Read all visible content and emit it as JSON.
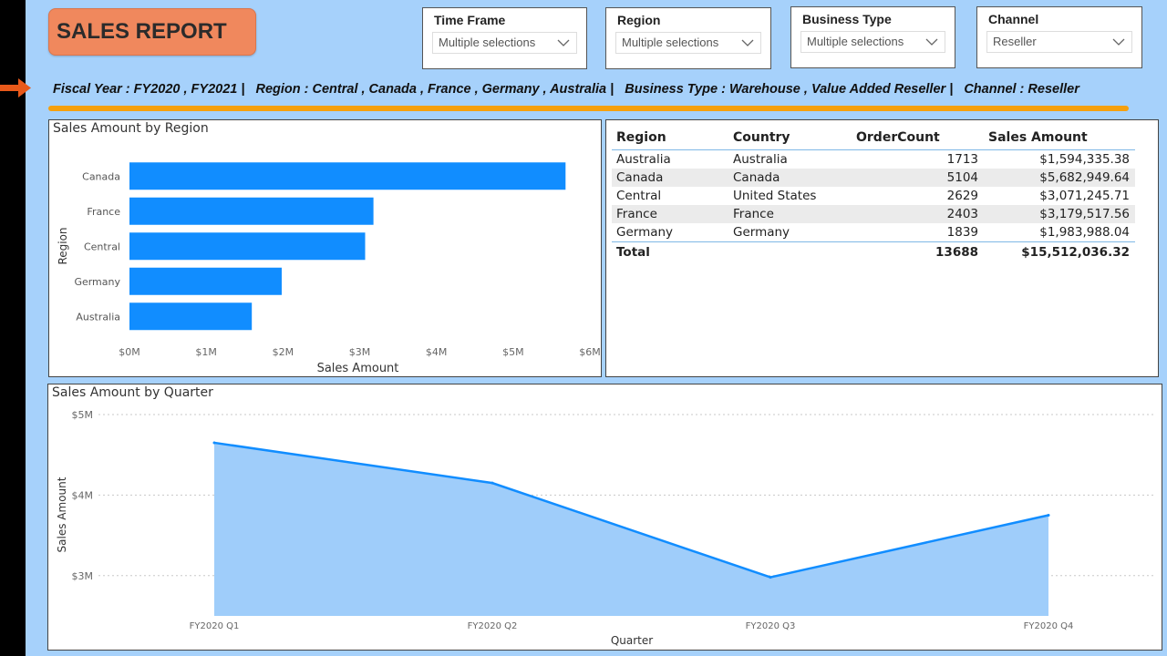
{
  "report": {
    "title": "SALES REPORT"
  },
  "slicers": [
    {
      "label": "Time Frame",
      "value": "Multiple selections"
    },
    {
      "label": "Region",
      "value": "Multiple selections"
    },
    {
      "label": "Business Type",
      "value": "Multiple selections"
    },
    {
      "label": "Channel",
      "value": "Reseller"
    }
  ],
  "filter_summary": "Fiscal Year : FY2020 , FY2021 |   Region : Central , Canada , France , Germany , Australia |   Business Type : Warehouse , Value Added Reseller |   Channel : Reseller",
  "colors": {
    "accent_orange": "#f5a00e",
    "bar_blue": "#118dff",
    "area_fill": "#9fcdfa",
    "background": "#a6d1fb",
    "title_bg": "#f0885d"
  },
  "table": {
    "columns": [
      "Region",
      "Country",
      "OrderCount",
      "Sales Amount"
    ],
    "rows": [
      [
        "Australia",
        "Australia",
        "1713",
        "$1,594,335.38"
      ],
      [
        "Canada",
        "Canada",
        "5104",
        "$5,682,949.64"
      ],
      [
        "Central",
        "United States",
        "2629",
        "$3,071,245.71"
      ],
      [
        "France",
        "France",
        "2403",
        "$3,179,517.56"
      ],
      [
        "Germany",
        "Germany",
        "1839",
        "$1,983,988.04"
      ]
    ],
    "total": [
      "Total",
      "",
      "13688",
      "$15,512,036.32"
    ]
  },
  "chart_data": [
    {
      "type": "bar",
      "orientation": "horizontal",
      "title": "Sales Amount by Region",
      "xlabel": "Sales Amount",
      "ylabel": "Region",
      "categories": [
        "Canada",
        "France",
        "Central",
        "Germany",
        "Australia"
      ],
      "values": [
        5682949.64,
        3179517.56,
        3071245.71,
        1983988.04,
        1594335.38
      ],
      "xlim": [
        0,
        6000000
      ],
      "xticks": [
        0,
        1000000,
        2000000,
        3000000,
        4000000,
        5000000,
        6000000
      ],
      "xtick_labels": [
        "$0M",
        "$1M",
        "$2M",
        "$3M",
        "$4M",
        "$5M",
        "$6M"
      ],
      "grid": false
    },
    {
      "type": "area",
      "title": "Sales Amount by Quarter",
      "xlabel": "Quarter",
      "ylabel": "Sales Amount",
      "categories": [
        "FY2020 Q1",
        "FY2020 Q2",
        "FY2020 Q3",
        "FY2020 Q4"
      ],
      "values": [
        4650000,
        4150000,
        2980000,
        3750000
      ],
      "ylim": [
        2500000,
        5000000
      ],
      "yticks": [
        3000000,
        4000000,
        5000000
      ],
      "ytick_labels": [
        "$3M",
        "$4M",
        "$5M"
      ],
      "grid": true
    }
  ]
}
